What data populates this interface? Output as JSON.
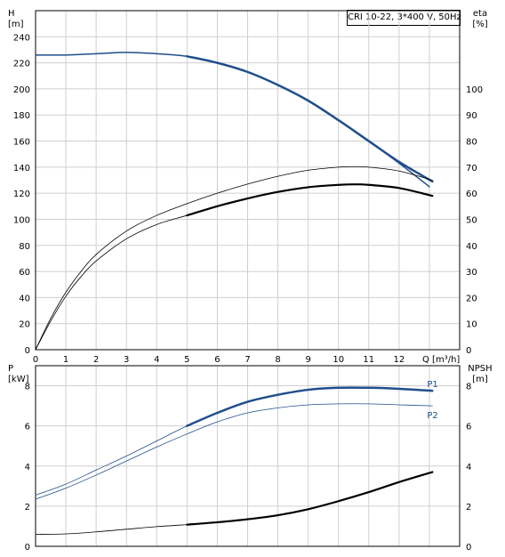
{
  "title_box": "CRI 10-22, 3*400 V, 50Hz",
  "colors": {
    "blue": "#1f4e8c",
    "black": "#000000",
    "grid": "#cfcfcf"
  },
  "chart_data": [
    {
      "type": "line",
      "panel": "top",
      "xlabel": "Q [m³/h]",
      "xlim": [
        0,
        14
      ],
      "x_ticks": [
        "0",
        "1",
        "2",
        "3",
        "4",
        "5",
        "6",
        "7",
        "8",
        "9",
        "10",
        "11",
        "12"
      ],
      "ylabel_left_name": "H",
      "ylabel_left_unit": "[m]",
      "ylim_left": [
        0,
        260
      ],
      "y_ticks_left": [
        "0",
        "20",
        "40",
        "60",
        "80",
        "100",
        "120",
        "140",
        "160",
        "180",
        "200",
        "220",
        "240"
      ],
      "ylabel_right_name": "eta",
      "ylabel_right_unit": "[%]",
      "ylim_right": [
        0,
        130
      ],
      "y_ticks_right": [
        "0",
        "10",
        "20",
        "30",
        "40",
        "50",
        "60",
        "70",
        "80",
        "90",
        "100"
      ],
      "grid": true,
      "series": [
        {
          "axis": "left",
          "color": "#1f4e8c",
          "width": 1.5,
          "x": [
            0,
            1,
            2,
            3,
            4,
            5,
            6,
            7,
            8,
            9,
            10,
            11,
            12,
            13
          ],
          "y": [
            226,
            226,
            227,
            228,
            227,
            225,
            220,
            213,
            203,
            191,
            176,
            160,
            143,
            125
          ]
        },
        {
          "axis": "left",
          "color": "#1f4e8c",
          "width": 2.5,
          "x": [
            5,
            6,
            7,
            8,
            9,
            10,
            11,
            12,
            13.1
          ],
          "y": [
            225,
            220,
            213,
            203,
            191,
            176,
            160,
            144,
            129
          ]
        },
        {
          "axis": "right",
          "color": "#000000",
          "width": 0.8,
          "x": [
            0,
            0.5,
            1,
            1.5,
            2,
            3,
            4,
            5,
            6,
            7,
            8,
            9,
            10,
            10.5,
            11,
            12,
            13.1
          ],
          "y": [
            0,
            12,
            22,
            30,
            36.5,
            45.5,
            51.5,
            56,
            60,
            63.5,
            66.5,
            68.8,
            70,
            70.2,
            70,
            68.5,
            65
          ]
        },
        {
          "axis": "right",
          "color": "#000000",
          "width": 0.8,
          "x": [
            0,
            0.5,
            1,
            1.5,
            2,
            3,
            4,
            5,
            6,
            7,
            8,
            9,
            10,
            11,
            12,
            13.1
          ],
          "y": [
            0,
            11,
            20.5,
            28,
            34,
            42.5,
            48,
            51.5,
            55,
            58,
            60.5,
            62.3,
            63.2,
            63.2,
            62,
            59
          ]
        },
        {
          "axis": "right",
          "color": "#000000",
          "width": 2.2,
          "x": [
            5,
            6,
            7,
            8,
            9,
            10,
            10.6,
            11,
            12,
            13.1
          ],
          "y": [
            51.5,
            55,
            58,
            60.5,
            62.3,
            63.2,
            63.4,
            63.2,
            62,
            59
          ]
        }
      ]
    },
    {
      "type": "line",
      "panel": "bottom",
      "xlim": [
        0,
        14
      ],
      "ylabel_left_name": "P",
      "ylabel_left_unit": "[kW]",
      "ylim_left": [
        0,
        9
      ],
      "y_ticks_left": [
        "0",
        "2",
        "4",
        "6",
        "8"
      ],
      "ylabel_right_name": "NPSH",
      "ylabel_right_unit": "[m]",
      "ylim_right": [
        0,
        9
      ],
      "y_ticks_right": [
        "0",
        "2",
        "4",
        "6",
        "8"
      ],
      "grid": true,
      "series": [
        {
          "name": "P1",
          "axis": "left",
          "color": "#1f4e8c",
          "width": 0.8,
          "x": [
            0,
            1,
            2,
            3,
            4,
            5,
            6,
            7,
            8,
            9,
            10,
            11,
            12,
            13.1
          ],
          "y": [
            2.55,
            3.1,
            3.8,
            4.5,
            5.25,
            6.0,
            6.65,
            7.2,
            7.55,
            7.8,
            7.9,
            7.9,
            7.85,
            7.75
          ]
        },
        {
          "axis": "left",
          "color": "#1f4e8c",
          "width": 2.5,
          "x": [
            5,
            6,
            7,
            8,
            9,
            10,
            11,
            12,
            13.1
          ],
          "y": [
            6.0,
            6.65,
            7.2,
            7.55,
            7.8,
            7.9,
            7.9,
            7.85,
            7.75
          ]
        },
        {
          "name": "P2",
          "axis": "left",
          "color": "#1f4e8c",
          "width": 0.8,
          "x": [
            0,
            1,
            2,
            3,
            4,
            5,
            6,
            7,
            8,
            9,
            10,
            11,
            12,
            13.1
          ],
          "y": [
            2.35,
            2.9,
            3.55,
            4.25,
            4.95,
            5.6,
            6.2,
            6.65,
            6.9,
            7.05,
            7.1,
            7.1,
            7.05,
            7.0
          ]
        },
        {
          "axis": "right",
          "color": "#000000",
          "width": 0.8,
          "x": [
            0,
            1,
            2,
            3,
            4,
            5
          ],
          "y": [
            0.6,
            0.62,
            0.72,
            0.85,
            0.98,
            1.08
          ]
        },
        {
          "axis": "right",
          "color": "#000000",
          "width": 2.2,
          "x": [
            5,
            6,
            7,
            8,
            9,
            10,
            11,
            12,
            13.1
          ],
          "y": [
            1.08,
            1.2,
            1.35,
            1.55,
            1.85,
            2.25,
            2.7,
            3.2,
            3.7
          ]
        }
      ]
    }
  ]
}
